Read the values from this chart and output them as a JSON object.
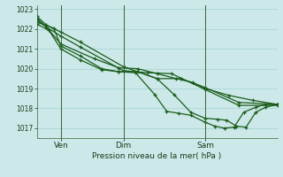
{
  "title": "Pression niveau de la mer( hPa )",
  "bg_color": "#cce8e8",
  "grid_color": "#99cccc",
  "line_color": "#1a5c1a",
  "marker_color": "#1a5c1a",
  "ylim": [
    1016.5,
    1023.2
  ],
  "yticks": [
    1017,
    1018,
    1019,
    1020,
    1021,
    1022,
    1023
  ],
  "xtick_labels": [
    "Ven",
    "Dim",
    "Sam"
  ],
  "xtick_positions": [
    0.1,
    0.36,
    0.7
  ],
  "vline_color": "#336633",
  "series": [
    [
      0.0,
      1022.65,
      0.04,
      1022.2,
      0.1,
      1021.85,
      0.18,
      1021.35,
      0.36,
      1020.1,
      0.5,
      1019.5,
      0.6,
      1019.5,
      0.7,
      1019.05,
      0.84,
      1018.3,
      1.0,
      1018.2
    ],
    [
      0.0,
      1022.55,
      0.04,
      1022.1,
      0.1,
      1021.65,
      0.18,
      1021.1,
      0.36,
      1019.9,
      0.46,
      1019.8,
      0.56,
      1019.75,
      0.7,
      1018.95,
      0.84,
      1018.15,
      1.0,
      1018.15
    ],
    [
      0.0,
      1022.45,
      0.04,
      1022.1,
      0.1,
      1021.25,
      0.24,
      1020.5,
      0.34,
      1020.05,
      0.42,
      1020.0,
      0.5,
      1019.75,
      0.58,
      1019.5,
      0.65,
      1019.3,
      0.7,
      1019.0,
      0.8,
      1018.65,
      0.9,
      1018.4,
      1.0,
      1018.2
    ],
    [
      0.0,
      1022.35,
      0.07,
      1022.05,
      0.1,
      1021.15,
      0.18,
      1020.65,
      0.27,
      1020.0,
      0.34,
      1019.85,
      0.42,
      1019.85,
      0.5,
      1019.5,
      0.57,
      1018.7,
      0.64,
      1017.8,
      0.7,
      1017.5,
      0.75,
      1017.45,
      0.79,
      1017.4,
      0.83,
      1017.1,
      0.87,
      1017.05,
      0.91,
      1017.8,
      0.95,
      1018.05,
      1.0,
      1018.2
    ],
    [
      0.0,
      1022.25,
      0.05,
      1021.95,
      0.1,
      1021.0,
      0.18,
      1020.45,
      0.27,
      1019.95,
      0.34,
      1019.85,
      0.41,
      1019.8,
      0.49,
      1018.7,
      0.54,
      1017.85,
      0.59,
      1017.75,
      0.64,
      1017.65,
      0.7,
      1017.3,
      0.74,
      1017.1,
      0.78,
      1017.0,
      0.82,
      1017.05,
      0.86,
      1017.8,
      0.91,
      1018.05,
      0.95,
      1018.2,
      1.0,
      1018.2
    ]
  ]
}
